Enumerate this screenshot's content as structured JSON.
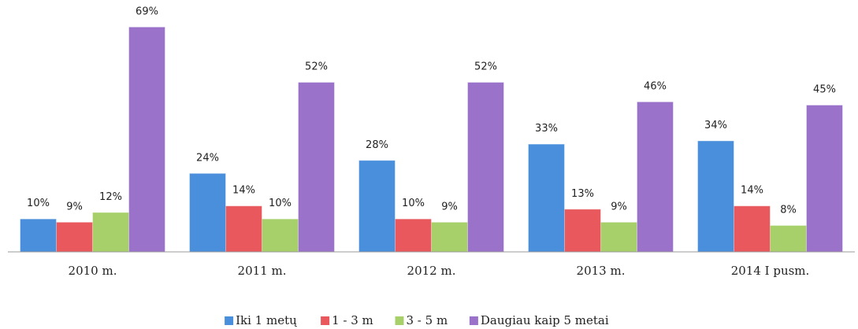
{
  "chart_data": {
    "type": "bar",
    "categories": [
      "2010 m.",
      "2011 m.",
      "2012 m.",
      "2013 m.",
      "2014 I pusm."
    ],
    "series": [
      {
        "name": "Iki 1 metų",
        "color": "#4a8fdc",
        "values": [
          10,
          24,
          28,
          33,
          34
        ],
        "value_labels": [
          "10%",
          "24%",
          "28%",
          "33%",
          "34%"
        ]
      },
      {
        "name": "1 - 3 m",
        "color": "#e8585c",
        "values": [
          9,
          14,
          10,
          13,
          14
        ],
        "value_labels": [
          "9%",
          "14%",
          "10%",
          "13%",
          "14%"
        ]
      },
      {
        "name": "3 - 5 m",
        "color": "#a7d06a",
        "values": [
          12,
          10,
          9,
          9,
          8
        ],
        "value_labels": [
          "12%",
          "10%",
          "9%",
          "9%",
          "8%"
        ]
      },
      {
        "name": "Daugiau kaip 5 metai",
        "color": "#9a72c9",
        "values": [
          69,
          52,
          52,
          46,
          45
        ],
        "value_labels": [
          "69%",
          "52%",
          "52%",
          "46%",
          "45%"
        ]
      }
    ],
    "ylim": [
      0,
      75
    ]
  }
}
